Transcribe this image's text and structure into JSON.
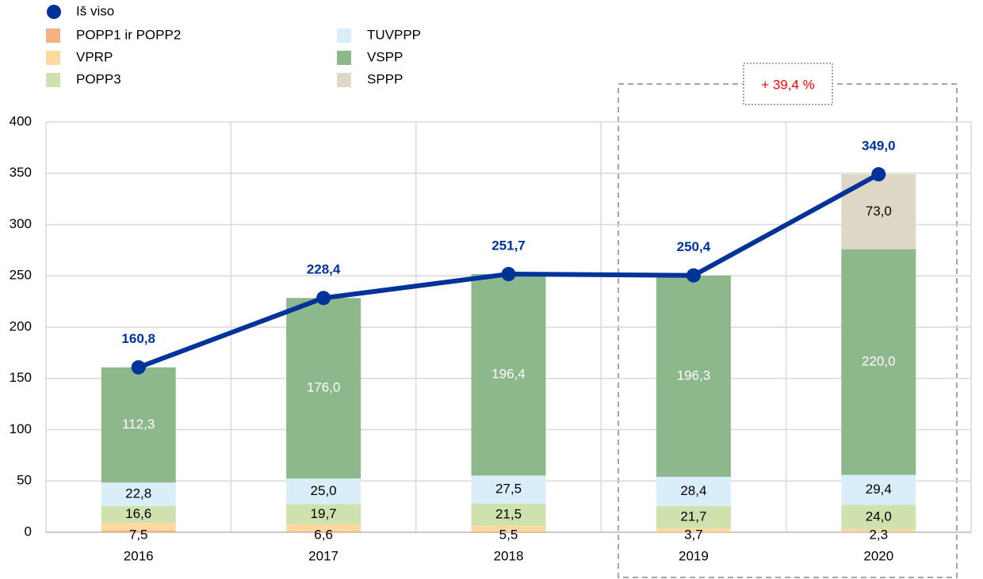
{
  "chart_data": {
    "type": "stacked_bar_line",
    "categories": [
      "2016",
      "2017",
      "2018",
      "2019",
      "2020"
    ],
    "series": [
      {
        "name": "POPP1  ir POPP2",
        "color": "#f4b183",
        "values": [
          1.6,
          1.1,
          0.8,
          0.3,
          0.3
        ]
      },
      {
        "name": "VPRP",
        "color": "#fdd9a0",
        "values": [
          7.5,
          6.6,
          5.5,
          3.7,
          2.3
        ],
        "value_labels": [
          "7,5",
          "6,6",
          "5,5",
          "3,7",
          "2,3"
        ],
        "label_pos": "base",
        "label_color": "#000000"
      },
      {
        "name": "POPP3",
        "color": "#cfe2ae",
        "values": [
          16.6,
          19.7,
          21.5,
          21.7,
          24.0
        ],
        "value_labels": [
          "16,6",
          "19,7",
          "21,5",
          "21,7",
          "24,0"
        ],
        "label_color": "#000000"
      },
      {
        "name": "TUVPPP",
        "color": "#d9eef9",
        "values": [
          22.8,
          25.0,
          27.5,
          28.4,
          29.4
        ],
        "value_labels": [
          "22,8",
          "25,0",
          "27,5",
          "28,4",
          "29,4"
        ],
        "label_color": "#000000"
      },
      {
        "name": "VSPP",
        "color": "#8cb88b",
        "values": [
          112.3,
          176.0,
          196.4,
          196.3,
          220.0
        ],
        "value_labels": [
          "112,3",
          "176,0",
          "196,4",
          "196,3",
          "220,0"
        ],
        "label_color": "#ffffff"
      },
      {
        "name": "SPPP",
        "color": "#ddd8c5",
        "values": [
          null,
          null,
          null,
          null,
          73.0
        ],
        "value_labels": [
          null,
          null,
          null,
          null,
          "73,0"
        ],
        "label_color": "#000000"
      }
    ],
    "total": {
      "name": "Iš viso",
      "color": "#003399",
      "values": [
        160.8,
        228.4,
        251.7,
        250.4,
        349.0
      ],
      "value_labels": [
        "160,8",
        "228,4",
        "251,7",
        "250,4",
        "349,0"
      ]
    },
    "annotation": "+ 39,4  %",
    "annotation_color": "#ff0000",
    "ylim": [
      0,
      400
    ],
    "yticks": [
      0,
      50,
      100,
      150,
      200,
      250,
      300,
      350,
      400
    ],
    "grid": true
  }
}
